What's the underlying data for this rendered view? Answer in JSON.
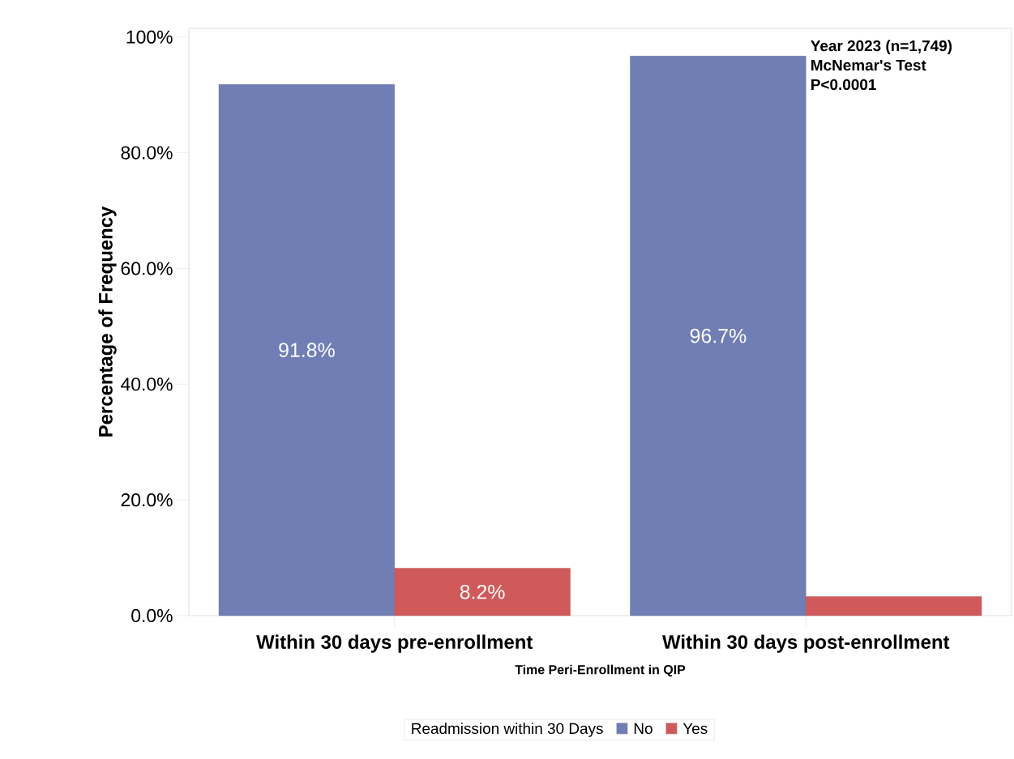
{
  "chart_data": {
    "type": "bar",
    "xlabel": "Time Peri-Enrollment in QIP",
    "ylabel": "Percentage of Frequency",
    "legend_title": "Readmission within 30 Days",
    "categories": [
      "Within 30 days pre-enrollment",
      "Within 30 days post-enrollment"
    ],
    "series": [
      {
        "name": "No",
        "color": "#6f7fb5",
        "values": [
          91.8,
          96.7
        ],
        "value_labels": [
          "91.8%",
          "96.7%"
        ]
      },
      {
        "name": "Yes",
        "color": "#d05a5a",
        "values": [
          8.2,
          3.3
        ],
        "value_labels": [
          "8.2%",
          null
        ]
      }
    ],
    "ylim": [
      0,
      101.5
    ],
    "yticks": [
      {
        "value": 0,
        "label": "0.0%"
      },
      {
        "value": 20,
        "label": "20.0%"
      },
      {
        "value": 40,
        "label": "40.0%"
      },
      {
        "value": 60,
        "label": "60.0%"
      },
      {
        "value": 80,
        "label": "80.0%"
      },
      {
        "value": 100,
        "label": "100%"
      }
    ],
    "annotations": [
      "Year 2023 (n=1,749)",
      "McNemar's Test",
      "P<0.0001"
    ],
    "legend": "bottom",
    "grid": false
  }
}
